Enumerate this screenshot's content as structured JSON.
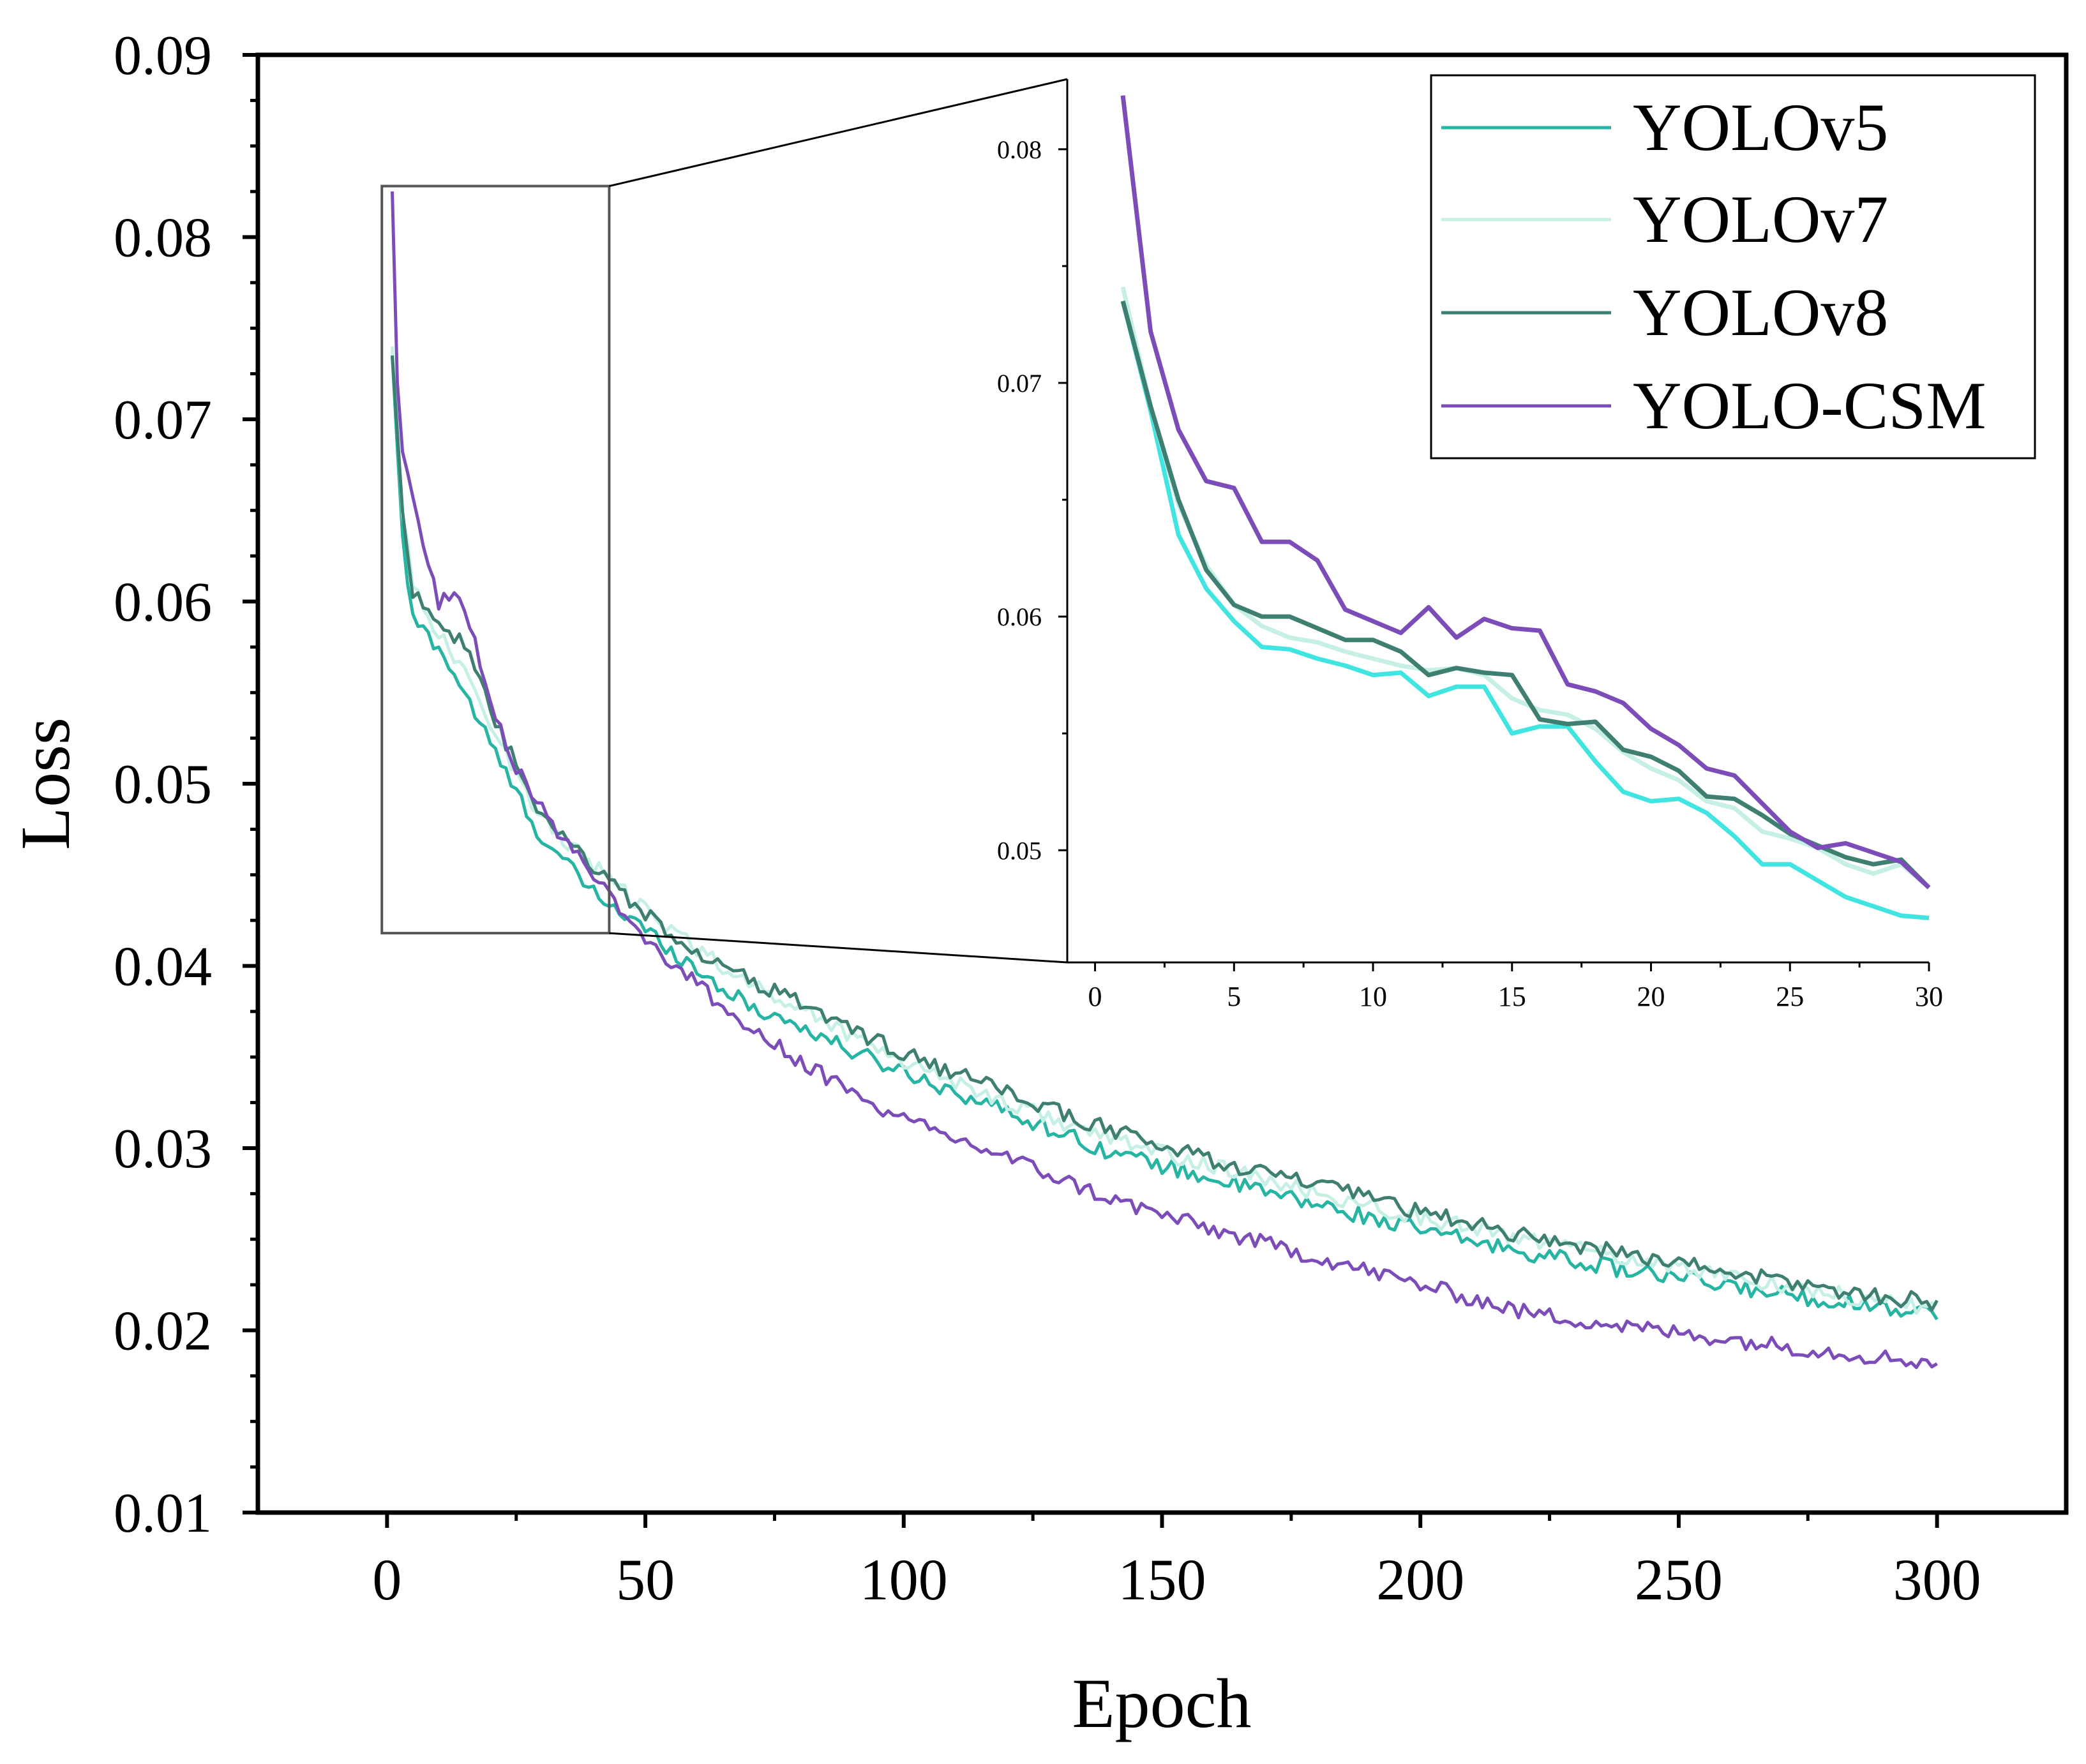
{
  "chart_data": {
    "type": "line",
    "xlabel": "Epoch",
    "ylabel": "Loss",
    "xlim": [
      -25,
      325
    ],
    "ylim": [
      0.01,
      0.09
    ],
    "xticks": [
      0,
      50,
      100,
      150,
      200,
      250,
      300
    ],
    "xtick_labels": [
      "0",
      "50",
      "100",
      "150",
      "200",
      "250",
      "300"
    ],
    "yticks": [
      0.01,
      0.02,
      0.03,
      0.04,
      0.05,
      0.06,
      0.07,
      0.08,
      0.09
    ],
    "ytick_labels": [
      "0.01",
      "0.02",
      "0.03",
      "0.04",
      "0.05",
      "0.06",
      "0.07",
      "0.08",
      "0.09"
    ],
    "legend_position": "top-right",
    "series": [
      {
        "name": "YOLOv5",
        "color": "#26b5a3",
        "x": [
          1,
          3,
          5,
          10,
          15,
          20,
          25,
          30,
          40,
          50,
          60,
          70,
          80,
          90,
          100,
          120,
          140,
          160,
          180,
          200,
          220,
          240,
          260,
          280,
          300
        ],
        "y": [
          0.0735,
          0.0633,
          0.059,
          0.0575,
          0.055,
          0.0522,
          0.0495,
          0.047,
          0.044,
          0.042,
          0.0398,
          0.0378,
          0.0367,
          0.0353,
          0.0342,
          0.032,
          0.0298,
          0.0283,
          0.0269,
          0.0255,
          0.0243,
          0.0233,
          0.0224,
          0.0216,
          0.021
        ]
      },
      {
        "name": "YOLOv7",
        "color": "#c6f0e6",
        "x": [
          1,
          3,
          5,
          10,
          15,
          20,
          25,
          30,
          40,
          50,
          60,
          70,
          80,
          90,
          100,
          120,
          140,
          160,
          180,
          200,
          220,
          240,
          260,
          280,
          300
        ],
        "y": [
          0.074,
          0.065,
          0.061,
          0.0582,
          0.056,
          0.0535,
          0.0505,
          0.048,
          0.0455,
          0.043,
          0.041,
          0.039,
          0.0377,
          0.0362,
          0.0348,
          0.0325,
          0.0305,
          0.029,
          0.0275,
          0.0262,
          0.025,
          0.024,
          0.023,
          0.022,
          0.0212
        ]
      },
      {
        "name": "YOLOv8",
        "color": "#3e7f72",
        "x": [
          1,
          3,
          5,
          10,
          15,
          20,
          25,
          30,
          40,
          50,
          60,
          70,
          80,
          90,
          100,
          120,
          140,
          160,
          180,
          200,
          220,
          240,
          260,
          280,
          300
        ],
        "y": [
          0.0735,
          0.065,
          0.0605,
          0.059,
          0.0575,
          0.054,
          0.051,
          0.048,
          0.0455,
          0.0428,
          0.0408,
          0.0392,
          0.038,
          0.0365,
          0.0352,
          0.033,
          0.031,
          0.0293,
          0.028,
          0.0265,
          0.0252,
          0.0242,
          0.0232,
          0.0222,
          0.0215
        ]
      },
      {
        "name": "YOLO-CSM",
        "color": "#7c4db8",
        "x": [
          1,
          2,
          3,
          5,
          7,
          10,
          12,
          15,
          20,
          25,
          30,
          40,
          50,
          60,
          70,
          80,
          90,
          100,
          120,
          140,
          160,
          180,
          200,
          220,
          240,
          260,
          280,
          300
        ],
        "y": [
          0.0825,
          0.072,
          0.068,
          0.0655,
          0.063,
          0.06,
          0.0605,
          0.0598,
          0.0545,
          0.051,
          0.0485,
          0.045,
          0.0415,
          0.039,
          0.0365,
          0.0348,
          0.033,
          0.0315,
          0.0295,
          0.0272,
          0.0255,
          0.024,
          0.0225,
          0.021,
          0.0202,
          0.0195,
          0.0188,
          0.0182
        ]
      }
    ],
    "inset": {
      "xlim": [
        -1,
        30
      ],
      "ylim": [
        0.0452,
        0.083
      ],
      "xticks": [
        0,
        5,
        10,
        15,
        20,
        25,
        30
      ],
      "xtick_labels": [
        "0",
        "5",
        "10",
        "15",
        "20",
        "25",
        "30"
      ],
      "yticks": [
        0.05,
        0.06,
        0.07,
        0.08
      ],
      "ytick_labels": [
        "0.05",
        "0.06",
        "0.07",
        "0.08"
      ],
      "zoom_region_x": [
        -1,
        43
      ],
      "zoom_region_y": [
        0.0418,
        0.0828
      ],
      "series": [
        {
          "name": "YOLOv5",
          "color": "#40e4e0",
          "x": [
            1,
            2,
            3,
            4,
            5,
            6,
            7,
            8,
            9,
            10,
            11,
            12,
            13,
            14,
            15,
            16,
            17,
            18,
            19,
            20,
            21,
            22,
            23,
            24,
            25,
            26,
            27,
            28,
            29,
            30
          ],
          "y": [
            0.0735,
            0.0688,
            0.0635,
            0.0612,
            0.0598,
            0.0587,
            0.0586,
            0.0582,
            0.0579,
            0.0575,
            0.0576,
            0.0566,
            0.057,
            0.057,
            0.055,
            0.0553,
            0.0553,
            0.0538,
            0.0525,
            0.0521,
            0.0522,
            0.0516,
            0.0506,
            0.0494,
            0.0494,
            0.0487,
            0.048,
            0.0476,
            0.0472,
            0.0471
          ]
        },
        {
          "name": "YOLOv7",
          "color": "#c6f0e6",
          "x": [
            1,
            2,
            3,
            4,
            5,
            6,
            7,
            8,
            9,
            10,
            11,
            12,
            13,
            14,
            15,
            16,
            17,
            18,
            19,
            20,
            21,
            22,
            23,
            24,
            25,
            26,
            27,
            28,
            29,
            30
          ],
          "y": [
            0.0741,
            0.069,
            0.0648,
            0.0622,
            0.0605,
            0.0596,
            0.0591,
            0.0589,
            0.0585,
            0.0582,
            0.0579,
            0.0577,
            0.0578,
            0.0575,
            0.0565,
            0.056,
            0.0558,
            0.0552,
            0.0542,
            0.0535,
            0.053,
            0.0521,
            0.0518,
            0.0508,
            0.0505,
            0.0501,
            0.0494,
            0.049,
            0.0494,
            0.0484
          ]
        },
        {
          "name": "YOLOv8",
          "color": "#3e7f72",
          "x": [
            1,
            2,
            3,
            4,
            5,
            6,
            7,
            8,
            9,
            10,
            11,
            12,
            13,
            14,
            15,
            16,
            17,
            18,
            19,
            20,
            21,
            22,
            23,
            24,
            25,
            26,
            27,
            28,
            29,
            30
          ],
          "y": [
            0.0735,
            0.069,
            0.065,
            0.062,
            0.0605,
            0.06,
            0.06,
            0.0595,
            0.059,
            0.059,
            0.0585,
            0.0575,
            0.0578,
            0.0576,
            0.0575,
            0.0556,
            0.0554,
            0.0555,
            0.0543,
            0.054,
            0.0534,
            0.0523,
            0.0522,
            0.0515,
            0.0507,
            0.0502,
            0.0497,
            0.0494,
            0.0496,
            0.0484
          ]
        },
        {
          "name": "YOLO-CSM",
          "color": "#7c4db8",
          "x": [
            1,
            2,
            3,
            4,
            5,
            6,
            7,
            8,
            9,
            10,
            11,
            12,
            13,
            14,
            15,
            16,
            17,
            18,
            19,
            20,
            21,
            22,
            23,
            24,
            25,
            26,
            27,
            28,
            29,
            30
          ],
          "y": [
            0.0823,
            0.0722,
            0.068,
            0.0658,
            0.0655,
            0.0632,
            0.0632,
            0.0624,
            0.0603,
            0.0598,
            0.0593,
            0.0604,
            0.0591,
            0.0599,
            0.0595,
            0.0594,
            0.0571,
            0.0568,
            0.0563,
            0.0552,
            0.0545,
            0.0535,
            0.0532,
            0.052,
            0.0508,
            0.0501,
            0.0503,
            0.0499,
            0.0495,
            0.0484
          ]
        }
      ]
    }
  }
}
